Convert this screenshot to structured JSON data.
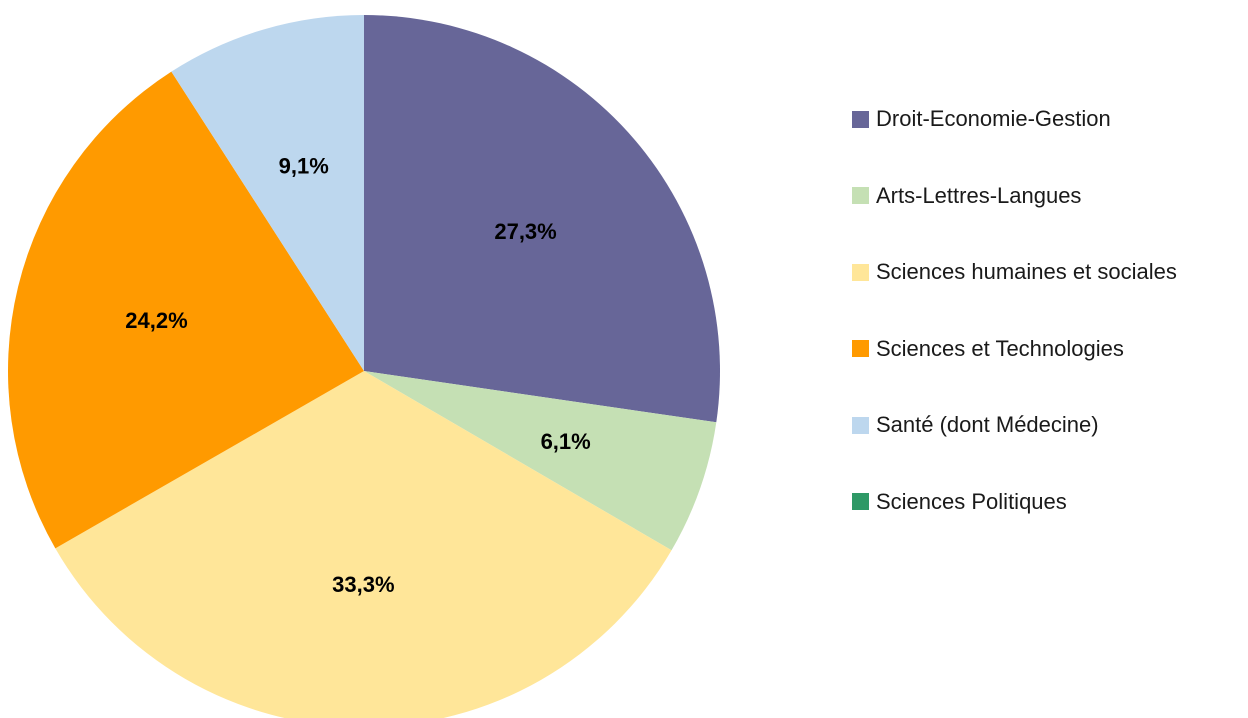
{
  "chart_data": {
    "type": "pie",
    "title": "",
    "categories": [
      "Droit-Economie-Gestion",
      "Arts-Lettres-Langues",
      "Sciences humaines et sociales",
      "Sciences et Technologies",
      "Santé (dont Médecine)",
      "Sciences Politiques"
    ],
    "values": [
      27.3,
      6.1,
      33.3,
      24.2,
      9.1,
      0
    ],
    "labels": [
      "27,3%",
      "6,1%",
      "33,3%",
      "24,2%",
      "9,1%",
      ""
    ],
    "colors": [
      "#676698",
      "#c5e0b4",
      "#ffe699",
      "#ff9a00",
      "#bdd7ee",
      "#2e9966"
    ],
    "legend_position": "right"
  }
}
